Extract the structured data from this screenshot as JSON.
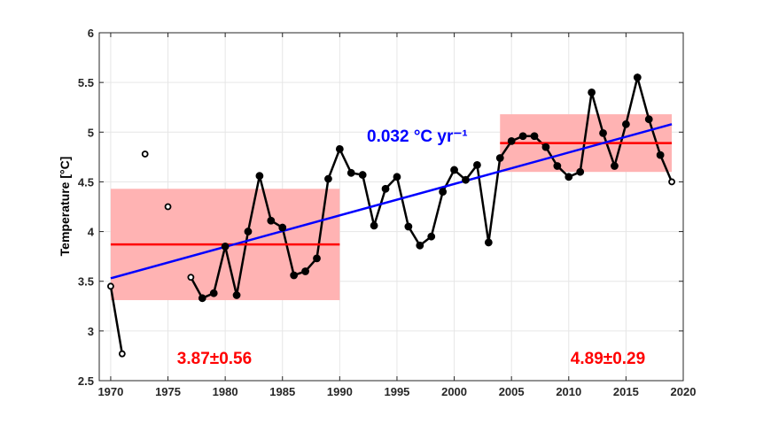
{
  "chart_data": {
    "type": "line",
    "title": "",
    "xlabel": "",
    "ylabel": "Temperature [°C]",
    "ylabel_parts": {
      "text": "Temperature [",
      "sup": "o",
      "unit": "C]"
    },
    "xlim": [
      1969,
      2020
    ],
    "ylim": [
      2.5,
      6
    ],
    "xticks": [
      1970,
      1975,
      1980,
      1985,
      1990,
      1995,
      2000,
      2005,
      2010,
      2015,
      2020
    ],
    "yticks": [
      2.5,
      3,
      3.5,
      4,
      4.5,
      5,
      5.5,
      6
    ],
    "grid": true,
    "series": [
      {
        "color": "#000000",
        "x": [
          1970,
          1971,
          1972,
          1973,
          1974,
          1975,
          1976,
          1977,
          1978,
          1979,
          1980,
          1981,
          1982,
          1983,
          1984,
          1985,
          1986,
          1987,
          1988,
          1989,
          1990,
          1991,
          1992,
          1993,
          1994,
          1995,
          1996,
          1997,
          1998,
          1999,
          2000,
          2001,
          2002,
          2003,
          2004,
          2005,
          2006,
          2007,
          2008,
          2009,
          2010,
          2011,
          2012,
          2013,
          2014,
          2015,
          2016,
          2017,
          2018,
          2019
        ],
        "y": [
          3.45,
          2.77,
          null,
          4.78,
          null,
          4.25,
          null,
          3.54,
          3.33,
          3.38,
          3.85,
          3.36,
          4.0,
          4.56,
          4.11,
          4.04,
          3.56,
          3.6,
          3.73,
          4.53,
          4.83,
          4.59,
          4.57,
          4.06,
          4.43,
          4.55,
          4.05,
          3.86,
          3.95,
          4.4,
          4.62,
          4.52,
          4.67,
          3.89,
          4.74,
          4.91,
          4.96,
          4.96,
          4.85,
          4.66,
          4.55,
          4.6,
          5.4,
          4.99,
          4.66,
          5.08,
          5.55,
          5.13,
          4.77,
          4.5
        ]
      }
    ],
    "trend": {
      "color": "#0000ff",
      "x": [
        1970,
        2019
      ],
      "y": [
        3.53,
        5.08
      ],
      "label": "0.032 °C yr⁻¹",
      "label_parts": {
        "value": "0.032 ",
        "sup1": "o",
        "unit": "C yr",
        "sup2": "-1"
      }
    },
    "periods": [
      {
        "x": [
          1970,
          1990
        ],
        "mean": 3.87,
        "std": 0.56,
        "label": "3.87±0.56",
        "label_year": 1980
      },
      {
        "x": [
          2004,
          2019
        ],
        "mean": 4.89,
        "std": 0.29,
        "label": "4.89±0.29",
        "label_year": 2012
      }
    ],
    "period_color": "#ff0000",
    "band_color": "#ffb3b3"
  }
}
